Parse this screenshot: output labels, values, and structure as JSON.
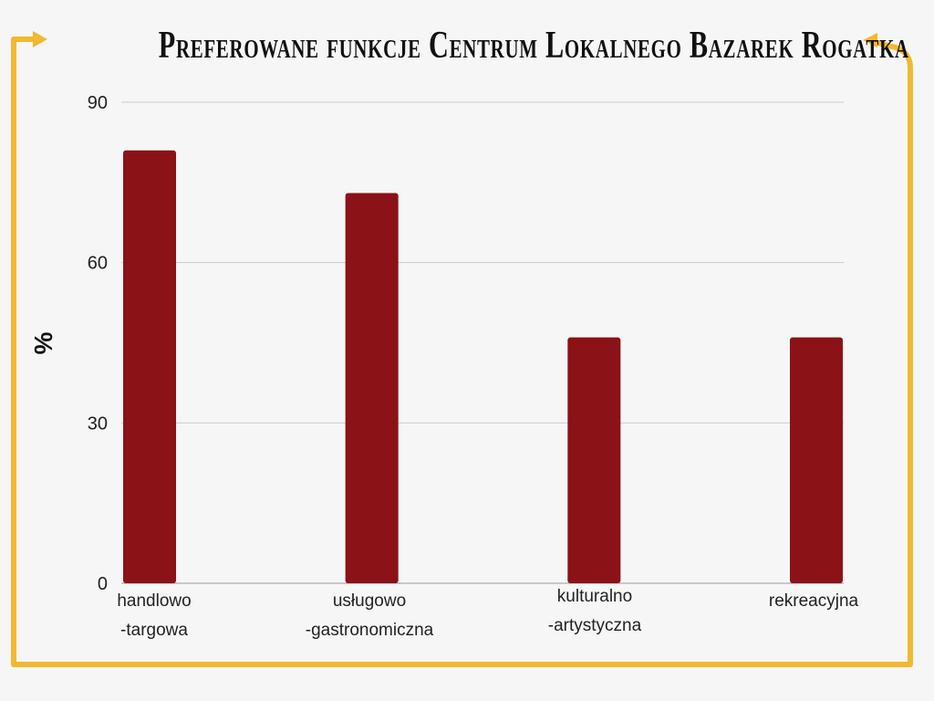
{
  "colors": {
    "background": "#f6f6f6",
    "bar": "#8b1217",
    "frame": "#f2b830",
    "grid": "#cccccc",
    "axis": "#999999"
  },
  "chart_data": {
    "type": "bar",
    "title": "Preferowane funkcje Centrum Lokalnego Bazarek Rogatka",
    "xlabel": "",
    "ylabel": "%",
    "ylim": [
      0,
      90
    ],
    "yticks": [
      "0",
      "30",
      "60",
      "90"
    ],
    "grid": true,
    "categories": [
      [
        "handlowo",
        "-targowa"
      ],
      [
        "usługowo",
        "-gastronomiczna"
      ],
      [
        "kulturalno",
        "-artystyczna"
      ],
      [
        "rekreacyjna"
      ]
    ],
    "values": [
      81,
      73,
      46,
      46
    ]
  }
}
